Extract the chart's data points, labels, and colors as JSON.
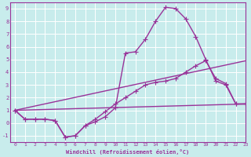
{
  "xlabel": "Windchill (Refroidissement éolien,°C)",
  "xlim": [
    -0.5,
    23
  ],
  "ylim": [
    -1.5,
    9.5
  ],
  "xticks": [
    0,
    1,
    2,
    3,
    4,
    5,
    6,
    7,
    8,
    9,
    10,
    11,
    12,
    13,
    14,
    15,
    16,
    17,
    18,
    19,
    20,
    21,
    22,
    23
  ],
  "yticks": [
    -1,
    0,
    1,
    2,
    3,
    4,
    5,
    6,
    7,
    8,
    9
  ],
  "bg_color": "#c8ecec",
  "grid_color": "#ffffff",
  "line_color": "#993399",
  "line_width": 1.0,
  "marker": "+",
  "markersize": 4,
  "series": [
    {
      "x": [
        0,
        1,
        2,
        3,
        4,
        5,
        6,
        7,
        8,
        9,
        10,
        11,
        12,
        13,
        14,
        15,
        16,
        17,
        18,
        19,
        20,
        21,
        22,
        23
      ],
      "y": [
        1.0,
        0.3,
        0.3,
        0.3,
        0.2,
        -1.1,
        -1.0,
        -0.2,
        0.1,
        0.5,
        1.2,
        5.5,
        5.6,
        6.6,
        8.0,
        9.1,
        9.0,
        8.2,
        6.8,
        5.0,
        3.3,
        3.0,
        1.5,
        1.5
      ],
      "has_markers": true
    },
    {
      "x": [
        0,
        1,
        2,
        3,
        4,
        5,
        6,
        7,
        8,
        9,
        10,
        11,
        12,
        13,
        14,
        15,
        16,
        17,
        18,
        19,
        20,
        21,
        22,
        23
      ],
      "y": [
        1.0,
        0.3,
        0.3,
        0.3,
        0.2,
        -1.1,
        -1.0,
        -0.2,
        0.3,
        0.9,
        1.5,
        2.0,
        2.5,
        3.0,
        3.2,
        3.3,
        3.5,
        4.0,
        4.5,
        4.9,
        3.5,
        3.1,
        1.5,
        1.5
      ],
      "has_markers": true
    },
    {
      "x": [
        0,
        23
      ],
      "y": [
        1.0,
        4.9
      ],
      "has_markers": false
    },
    {
      "x": [
        0,
        23
      ],
      "y": [
        1.0,
        1.5
      ],
      "has_markers": false
    }
  ]
}
